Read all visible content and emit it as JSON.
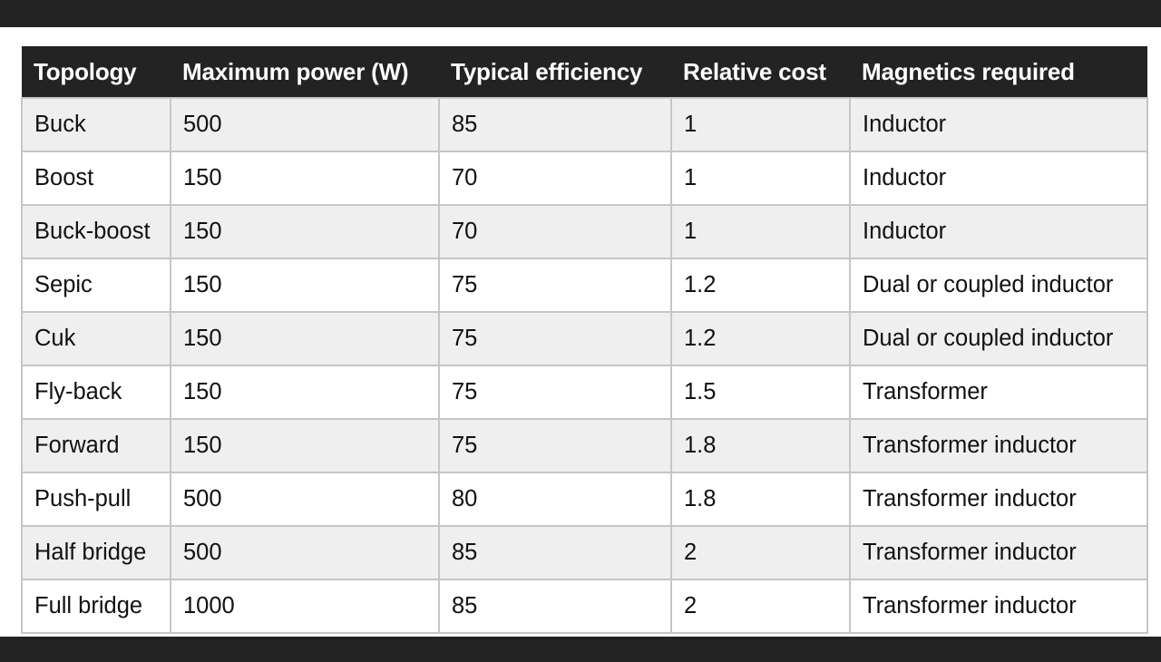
{
  "table": {
    "headers": [
      "Topology",
      "Maximum power (W)",
      "Typical efficiency",
      "Relative cost",
      "Magnetics required"
    ],
    "rows": [
      [
        "Buck",
        "500",
        "85",
        "1",
        "Inductor"
      ],
      [
        "Boost",
        "150",
        "70",
        "1",
        "Inductor"
      ],
      [
        "Buck-boost",
        "150",
        "70",
        "1",
        "Inductor"
      ],
      [
        "Sepic",
        "150",
        "75",
        "1.2",
        "Dual or coupled inductor"
      ],
      [
        "Cuk",
        "150",
        "75",
        "1.2",
        "Dual or coupled inductor"
      ],
      [
        "Fly-back",
        "150",
        "75",
        "1.5",
        "Transformer"
      ],
      [
        "Forward",
        "150",
        "75",
        "1.8",
        "Transformer inductor"
      ],
      [
        "Push-pull",
        "500",
        "80",
        "1.8",
        "Transformer inductor"
      ],
      [
        "Half bridge",
        "500",
        "85",
        "2",
        "Transformer inductor"
      ],
      [
        "Full bridge",
        "1000",
        "85",
        "2",
        "Transformer inductor"
      ]
    ]
  },
  "colors": {
    "header_bg": "#232323",
    "header_text": "#ffffff",
    "row_odd": "#efefef",
    "row_even": "#ffffff",
    "grid": "#c6c6c6",
    "frame": "#232323"
  }
}
